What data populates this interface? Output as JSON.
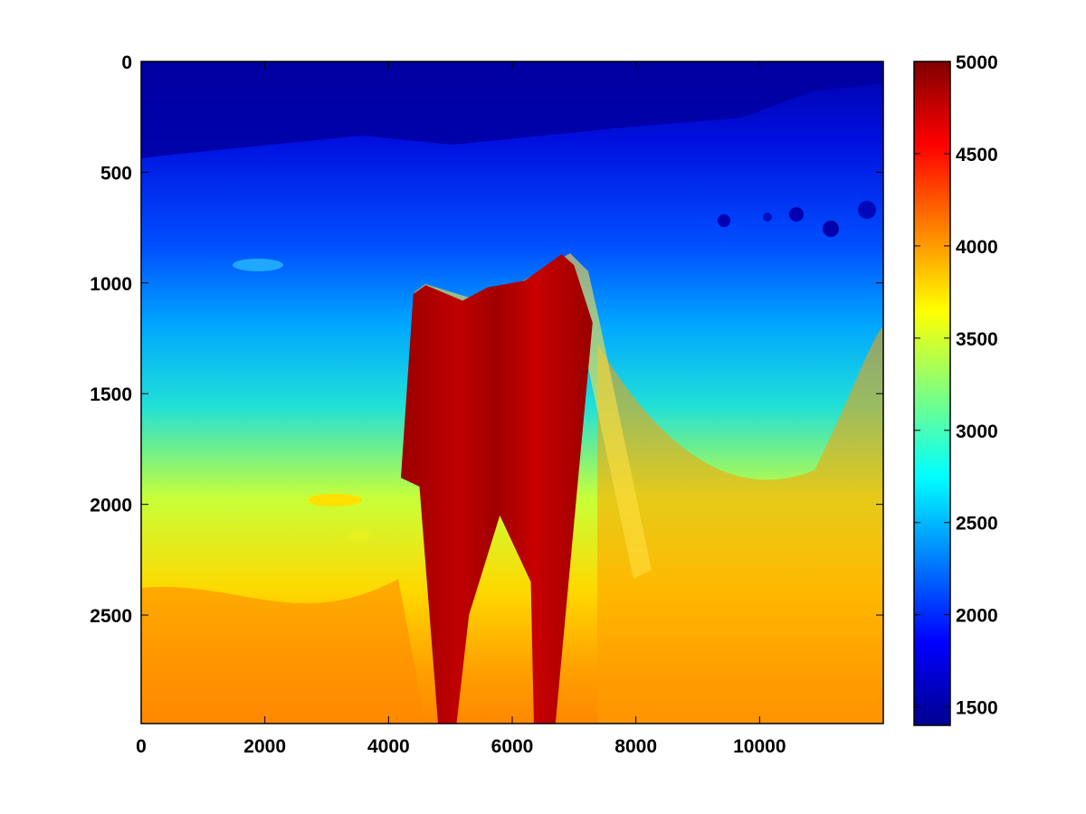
{
  "chart_data": {
    "type": "heatmap",
    "title": "",
    "xlabel": "",
    "ylabel": "",
    "colormap": "jet",
    "y_axis_direction": "down",
    "xlim": [
      0,
      12000
    ],
    "ylim": [
      0,
      2990
    ],
    "x_ticks": [
      0,
      2000,
      4000,
      6000,
      8000,
      10000
    ],
    "x_tick_labels": [
      "0",
      "2000",
      "4000",
      "6000",
      "8000",
      "10000"
    ],
    "y_ticks": [
      0,
      500,
      1000,
      1500,
      2000,
      2500
    ],
    "y_tick_labels": [
      "0",
      "500",
      "1000",
      "1500",
      "2000",
      "2500"
    ],
    "colorbar": {
      "range": [
        1400,
        5000
      ],
      "ticks": [
        1500,
        2000,
        2500,
        3000,
        3500,
        4000,
        4500,
        5000
      ],
      "tick_labels": [
        "1500",
        "2000",
        "2500",
        "3000",
        "3500",
        "4000",
        "4500",
        "5000"
      ]
    },
    "field_description": {
      "background_top": 1550,
      "background_bottom": 4200,
      "salt_body_value": 5000,
      "salt_top_outline": [
        [
          4200,
          1880
        ],
        [
          4400,
          1050
        ],
        [
          4600,
          1010
        ],
        [
          5200,
          1080
        ],
        [
          5600,
          1020
        ],
        [
          6200,
          990
        ],
        [
          6800,
          870
        ],
        [
          7000,
          920
        ],
        [
          7300,
          1180
        ],
        [
          6700,
          2990
        ],
        [
          6350,
          2990
        ],
        [
          6300,
          2350
        ],
        [
          5800,
          2050
        ],
        [
          5300,
          2500
        ],
        [
          5100,
          2990
        ],
        [
          4800,
          2990
        ],
        [
          4500,
          1920
        ]
      ]
    }
  }
}
